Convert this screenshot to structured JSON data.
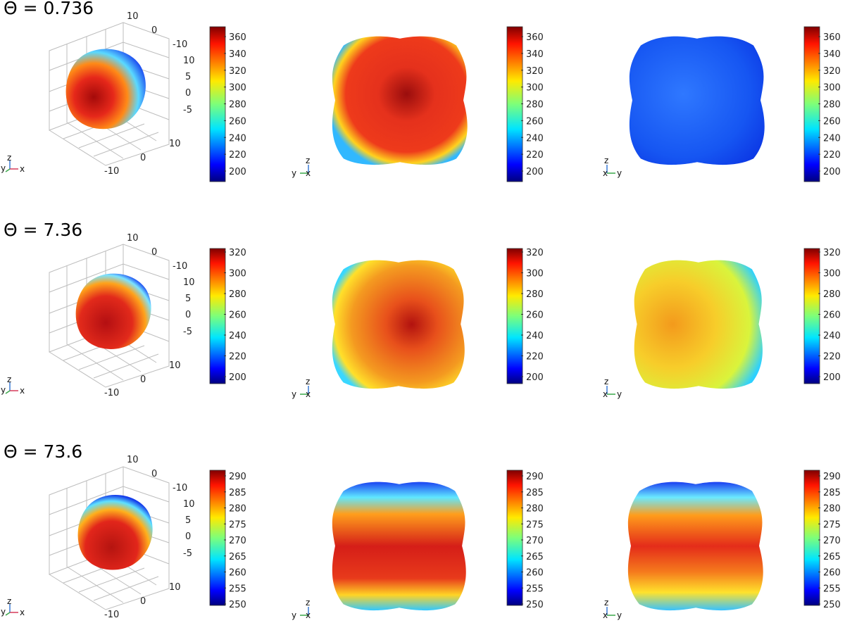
{
  "rows": [
    {
      "theta_label": "Θ = 0.736",
      "colorbar_ticks": [
        "200",
        "220",
        "240",
        "260",
        "280",
        "300",
        "320",
        "340",
        "360"
      ],
      "axis3d_ticks": {
        "x": [
          "-10",
          "0",
          "10"
        ],
        "y": [
          "10",
          "0",
          "-10"
        ],
        "z": [
          "10",
          "5",
          "0",
          "-5"
        ]
      },
      "views": [
        "3d",
        "yz",
        "xz"
      ],
      "colors": {
        "view1": "#e93a1f",
        "view2": "#e6311d",
        "view3": "#1a5bf0"
      }
    },
    {
      "theta_label": "Θ = 7.36",
      "colorbar_ticks": [
        "200",
        "220",
        "240",
        "260",
        "280",
        "300",
        "320"
      ],
      "axis3d_ticks": {
        "x": [
          "-10",
          "0",
          "10"
        ],
        "y": [
          "10",
          "0",
          "-10"
        ],
        "z": [
          "10",
          "5",
          "0",
          "-5"
        ]
      },
      "views": [
        "3d",
        "yz",
        "xz"
      ],
      "colors": {
        "view1": "#d9271b",
        "view2": "#f07c1a",
        "view3": "#f3c229"
      }
    },
    {
      "theta_label": "Θ = 73.6",
      "colorbar_ticks": [
        "250",
        "255",
        "260",
        "265",
        "270",
        "275",
        "280",
        "285",
        "290"
      ],
      "axis3d_ticks": {
        "x": [
          "-10",
          "0",
          "10"
        ],
        "y": [
          "10",
          "0",
          "-10"
        ],
        "z": [
          "10",
          "5",
          "0",
          "-5"
        ]
      },
      "views": [
        "3d",
        "yz",
        "xz"
      ],
      "colors": {
        "view1": "#d9241c",
        "view2": "#e8401c",
        "view3": "#ea3a1c"
      }
    }
  ],
  "triads": {
    "iso": {
      "y": "y",
      "z": "z",
      "x": "x"
    },
    "yz": {
      "z": "z",
      "left": "y",
      "center": "x"
    },
    "xz": {
      "z": "z",
      "left": "x",
      "right": "y"
    }
  }
}
